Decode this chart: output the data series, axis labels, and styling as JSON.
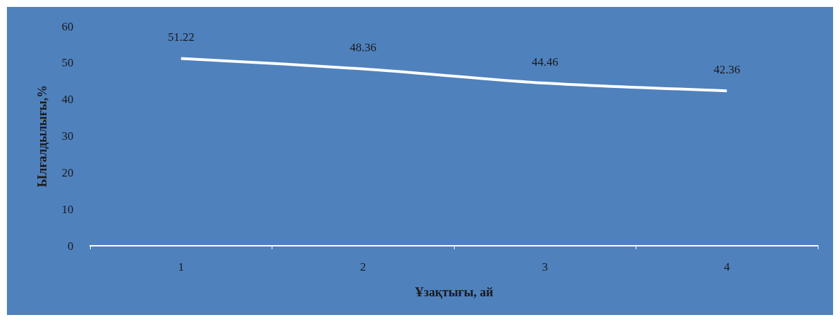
{
  "chart_data": {
    "type": "line",
    "xlabel": "Ұзақтығы, ай",
    "ylabel": "Ылғалдылығы,%",
    "categories": [
      "1",
      "2",
      "3",
      "4"
    ],
    "series": [
      {
        "color": "#ffffff",
        "values": [
          51.22,
          48.36,
          44.46,
          42.36
        ]
      }
    ],
    "ylim": [
      0,
      60
    ],
    "yticks": [
      0,
      10,
      20,
      30,
      40,
      50,
      60
    ],
    "grid": false,
    "data_labels": true,
    "marker": "none",
    "line_style": "solid"
  }
}
